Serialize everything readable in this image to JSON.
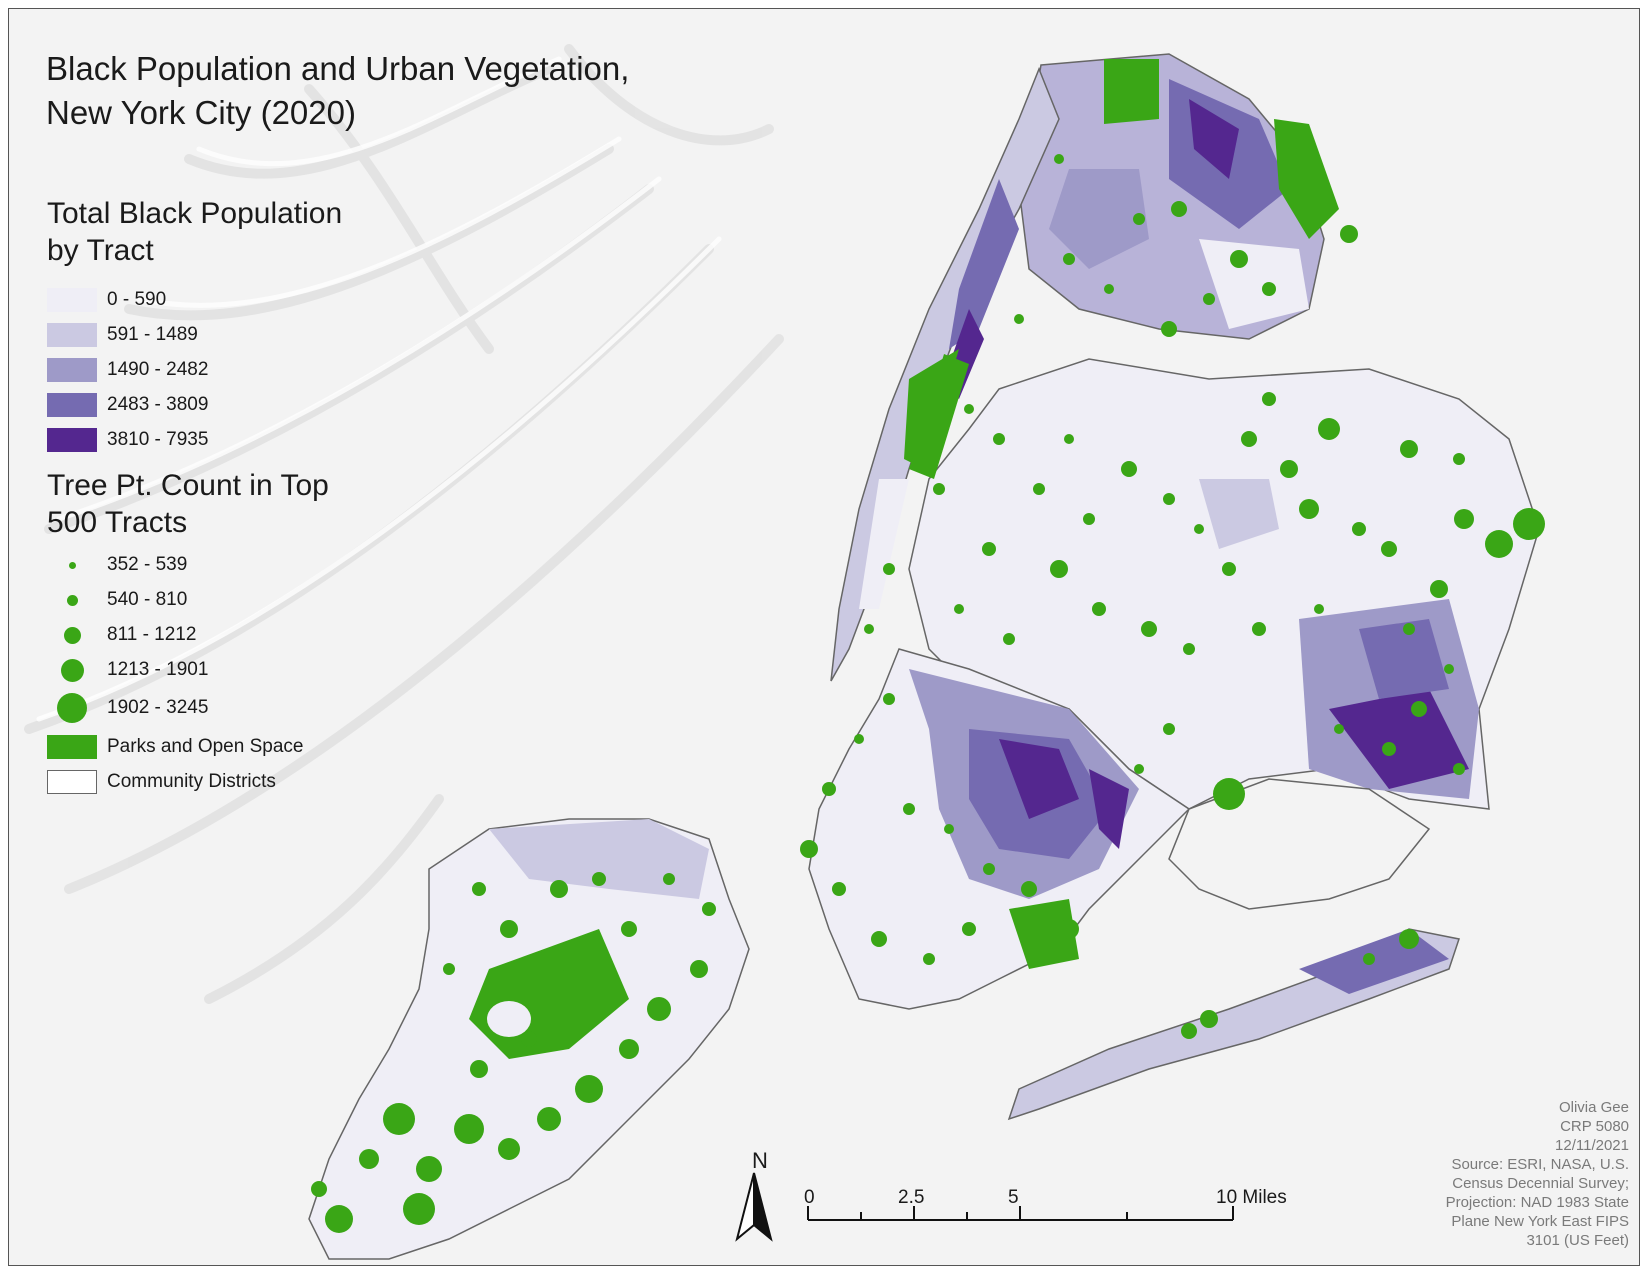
{
  "title": {
    "line1": "Black Population and Urban Vegetation,",
    "line2": "New York City (2020)"
  },
  "legend": {
    "choropleth": {
      "heading_line1": "Total Black Population",
      "heading_line2": "by Tract",
      "classes": [
        {
          "label": "0 - 590",
          "color": "#efeef6"
        },
        {
          "label": "591 - 1489",
          "color": "#cbc9e2"
        },
        {
          "label": "1490 - 2482",
          "color": "#9e9ac8"
        },
        {
          "label": "2483 - 3809",
          "color": "#756bb1"
        },
        {
          "label": "3810 - 7935",
          "color": "#54278f"
        }
      ]
    },
    "trees": {
      "heading_line1": "Tree Pt. Count in Top",
      "heading_line2": "500 Tracts",
      "classes": [
        {
          "label": "352 - 539"
        },
        {
          "label": "540 - 810"
        },
        {
          "label": "811 - 1212"
        },
        {
          "label": "1213 - 1901"
        },
        {
          "label": "1902 - 3245"
        }
      ],
      "color": "#3aa616"
    },
    "parks": {
      "label": "Parks and Open Space",
      "color": "#3aa616"
    },
    "districts": {
      "label": "Community Districts",
      "color": "#666666"
    }
  },
  "north_arrow": {
    "label": "N"
  },
  "scale_bar": {
    "labels": [
      "0",
      "2.5",
      "5",
      "10 Miles"
    ]
  },
  "credits": [
    "Olivia Gee",
    "CRP 5080",
    "12/11/2021",
    "Source: ESRI, NASA, U.S.",
    "Census Decennial Survey;",
    "Projection: NAD 1983 State",
    "Plane New York East FIPS",
    "3101 (US Feet)"
  ]
}
